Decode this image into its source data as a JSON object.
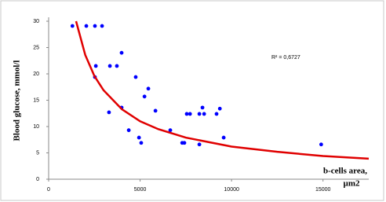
{
  "chart_data": {
    "type": "scatter",
    "y_label": "Blood glucose, mmol/l",
    "x_label_lines": [
      "b-cells area,",
      "µm2"
    ],
    "annotation": "R² = 0,6727",
    "x": [
      1300,
      2060,
      2530,
      2920,
      2580,
      2530,
      3350,
      3730,
      3990,
      4760,
      3990,
      3300,
      5450,
      5240,
      5840,
      4380,
      4940,
      5060,
      6650,
      7300,
      7420,
      7550,
      7730,
      8240,
      8410,
      8500,
      8240,
      9180,
      9360,
      9570,
      14900
    ],
    "values": [
      29.1,
      29.1,
      29.1,
      29.1,
      21.5,
      19.4,
      21.5,
      21.5,
      24,
      19.4,
      13.6,
      12.7,
      17.2,
      15.7,
      13,
      9.3,
      7.9,
      6.9,
      9.3,
      6.9,
      6.9,
      12.4,
      12.4,
      12.4,
      13.6,
      12.4,
      6.6,
      12.4,
      13.4,
      7.9,
      6.6
    ],
    "color": "#0000ff",
    "trendline": {
      "x": [
        1500,
        2000,
        2500,
        3000,
        4000,
        5000,
        6000,
        7500,
        10000,
        12500,
        15000,
        17500
      ],
      "values": [
        30,
        23.6,
        19.6,
        16.9,
        13.3,
        11.0,
        9.5,
        7.9,
        6.2,
        5.2,
        4.4,
        3.9
      ],
      "color": "#e00000"
    },
    "xlim": [
      0,
      17500
    ],
    "ylim": [
      0,
      30
    ],
    "xticks": [
      0,
      5000,
      10000,
      15000
    ],
    "yticks": [
      0,
      5,
      10,
      15,
      20,
      25,
      30
    ]
  }
}
